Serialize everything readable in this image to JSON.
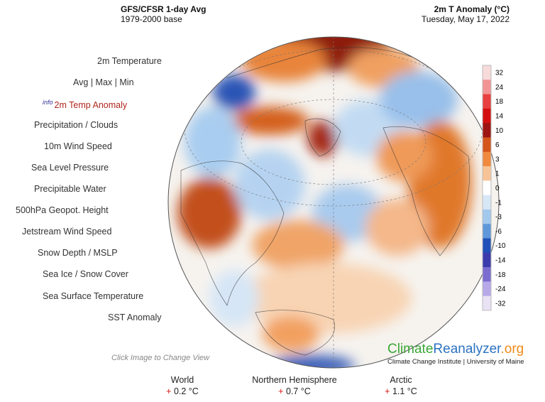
{
  "header": {
    "model": "GFS/CFSR 1-day Avg",
    "base": "1979-2000 base",
    "variable": "2m T Anomaly (°C)",
    "date": "Tuesday, May 17, 2022"
  },
  "menu": {
    "items": [
      "2m Temperature",
      "Avg",
      "Max",
      "Min",
      "2m Temp Anomaly",
      "Precipitation / Clouds",
      "10m Wind Speed",
      "Sea Level Pressure",
      "Precipitable Water",
      "500hPa Geopot. Height",
      "Jetstream Wind Speed",
      "Snow Depth / MSLP",
      "Sea Ice / Snow Cover",
      "Sea Surface Temperature",
      "SST Anomaly"
    ],
    "separator": "|",
    "info": "info"
  },
  "hint": "Click Image to Change View",
  "colorbar": {
    "labels": [
      "32",
      "24",
      "18",
      "14",
      "10",
      "6",
      "3",
      "1",
      "0",
      "-1",
      "-3",
      "-6",
      "-10",
      "-14",
      "-18",
      "-24",
      "-32"
    ],
    "colors": [
      "#f7dada",
      "#f29494",
      "#e84040",
      "#d40f0f",
      "#9e1412",
      "#d4561a",
      "#f08a3e",
      "#f8c497",
      "#ffffff",
      "#d8e7f6",
      "#a2c8ec",
      "#5f98da",
      "#2050b8",
      "#3b3bac",
      "#7b6cd0",
      "#b7a9e8",
      "#e9e2f5"
    ]
  },
  "brand": {
    "part1": "Climate",
    "part2": "Reanalyzer",
    "part3": ".org",
    "subtitle": "Climate Change Institute | University of Maine"
  },
  "stats": [
    {
      "name": "World",
      "sign": "+",
      "value": "0.2 °C"
    },
    {
      "name": "Northern Hemisphere",
      "sign": "+",
      "value": "0.7 °C"
    },
    {
      "name": "Arctic",
      "sign": "+",
      "value": "1.1 °C"
    }
  ]
}
